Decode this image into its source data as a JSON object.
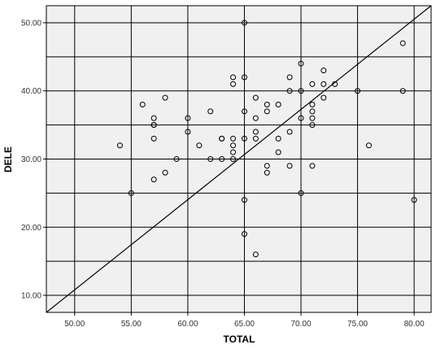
{
  "chart_data": {
    "type": "scatter",
    "title": "",
    "xlabel": "TOTAL",
    "ylabel": "DELE",
    "xlim": [
      47.5,
      81.5
    ],
    "ylim": [
      7.5,
      52.5
    ],
    "x_ticks": [
      "50.00",
      "55.00",
      "60.00",
      "65.00",
      "70.00",
      "75.00",
      "80.00"
    ],
    "y_ticks": [
      "10.00",
      "20.00",
      "30.00",
      "40.00",
      "50.00"
    ],
    "grid": true,
    "grid_x": [
      50,
      55,
      60,
      65,
      70,
      75,
      80
    ],
    "grid_y": [
      10,
      15,
      20,
      25,
      30,
      35,
      40,
      45,
      50
    ],
    "plot_background": "#f0f0f0",
    "marker": "hollow-circle",
    "reference_line": {
      "x": [
        47.5,
        81.5
      ],
      "y": [
        7.5,
        52.5
      ]
    },
    "points": [
      [
        54,
        32
      ],
      [
        55,
        25
      ],
      [
        56,
        38
      ],
      [
        57,
        36
      ],
      [
        57,
        35
      ],
      [
        57,
        35
      ],
      [
        57,
        33
      ],
      [
        57,
        27
      ],
      [
        58,
        39
      ],
      [
        58,
        28
      ],
      [
        59,
        30
      ],
      [
        60,
        36
      ],
      [
        60,
        34
      ],
      [
        61,
        32
      ],
      [
        62,
        37
      ],
      [
        62,
        30
      ],
      [
        63,
        33
      ],
      [
        63,
        33
      ],
      [
        63,
        30
      ],
      [
        64,
        42
      ],
      [
        64,
        41
      ],
      [
        64,
        33
      ],
      [
        64,
        32
      ],
      [
        64,
        31
      ],
      [
        64,
        30
      ],
      [
        65,
        50
      ],
      [
        65,
        42
      ],
      [
        65,
        37
      ],
      [
        65,
        33
      ],
      [
        65,
        24
      ],
      [
        65,
        19
      ],
      [
        66,
        39
      ],
      [
        66,
        36
      ],
      [
        66,
        34
      ],
      [
        66,
        33
      ],
      [
        66,
        16
      ],
      [
        67,
        38
      ],
      [
        67,
        37
      ],
      [
        67,
        29
      ],
      [
        67,
        28
      ],
      [
        68,
        38
      ],
      [
        68,
        33
      ],
      [
        68,
        31
      ],
      [
        69,
        42
      ],
      [
        69,
        40
      ],
      [
        69,
        34
      ],
      [
        69,
        29
      ],
      [
        70,
        44
      ],
      [
        70,
        40
      ],
      [
        70,
        36
      ],
      [
        70,
        25
      ],
      [
        71,
        41
      ],
      [
        71,
        38
      ],
      [
        71,
        37
      ],
      [
        71,
        36
      ],
      [
        71,
        35
      ],
      [
        71,
        29
      ],
      [
        72,
        43
      ],
      [
        72,
        41
      ],
      [
        72,
        39
      ],
      [
        73,
        41
      ],
      [
        75,
        40
      ],
      [
        76,
        32
      ],
      [
        79,
        47
      ],
      [
        79,
        40
      ],
      [
        80,
        24
      ]
    ]
  }
}
